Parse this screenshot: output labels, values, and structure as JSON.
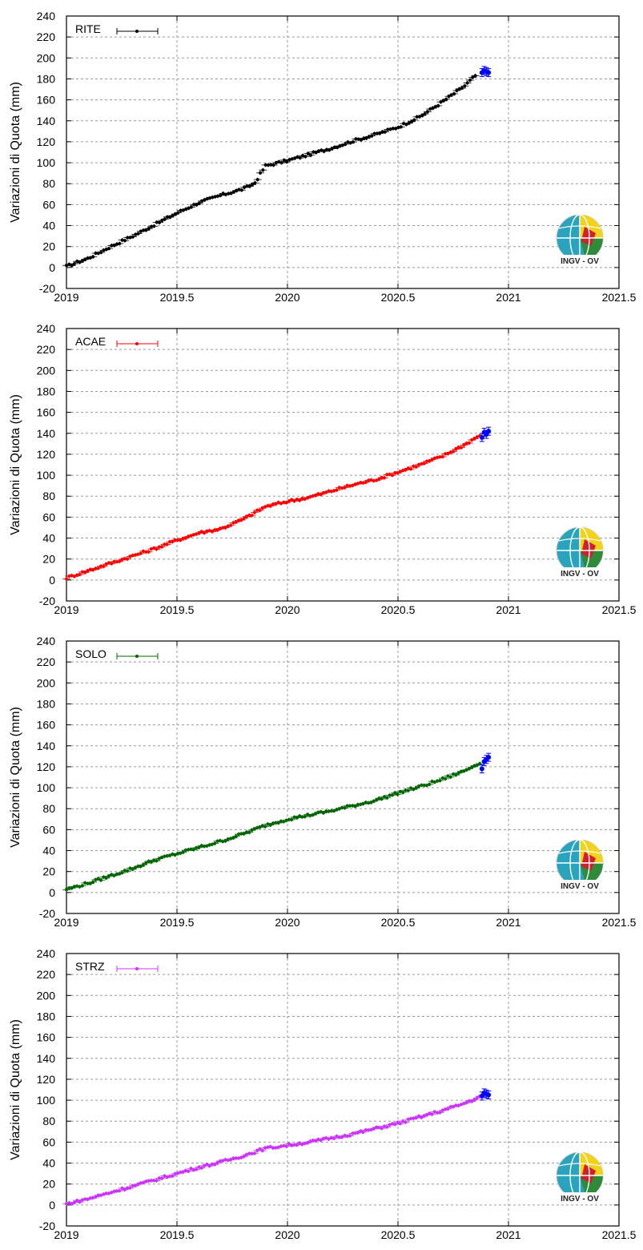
{
  "logo_text": "INGV - OV",
  "chart_data": [
    {
      "type": "scatter",
      "title": "",
      "xlabel": "",
      "ylabel": "Variazioni di Quota (mm)",
      "xlim": [
        2019,
        2021.5
      ],
      "ylim": [
        -20,
        240
      ],
      "x_ticks": [
        "2019",
        "2019.5",
        "2020",
        "2020.5",
        "2021",
        "2021.5"
      ],
      "y_ticks": [
        "-20",
        "0",
        "20",
        "40",
        "60",
        "80",
        "100",
        "120",
        "140",
        "160",
        "180",
        "200",
        "220",
        "240"
      ],
      "grid": true,
      "legend_position": "top-left",
      "series": [
        {
          "name": "RITE",
          "color": "#000000",
          "x": [
            2019.0,
            2019.1,
            2019.2,
            2019.3,
            2019.4,
            2019.5,
            2019.6,
            2019.7,
            2019.8,
            2019.85,
            2019.9,
            2020.0,
            2020.1,
            2020.2,
            2020.3,
            2020.4,
            2020.5,
            2020.6,
            2020.7,
            2020.8,
            2020.85
          ],
          "y": [
            1,
            9,
            20,
            30,
            41,
            52,
            62,
            69,
            75,
            80,
            97,
            102,
            108,
            114,
            121,
            127,
            134,
            144,
            158,
            173,
            183
          ]
        },
        {
          "name": "",
          "color": "#0000ff",
          "x": [
            2020.88,
            2020.89,
            2020.9,
            2020.91
          ],
          "y": [
            186,
            188,
            187,
            186
          ]
        }
      ]
    },
    {
      "type": "scatter",
      "title": "",
      "xlabel": "",
      "ylabel": "Variazioni di Quota (mm)",
      "xlim": [
        2019,
        2021.5
      ],
      "ylim": [
        -20,
        240
      ],
      "x_ticks": [
        "2019",
        "2019.5",
        "2020",
        "2020.5",
        "2021",
        "2021.5"
      ],
      "y_ticks": [
        "-20",
        "0",
        "20",
        "40",
        "60",
        "80",
        "100",
        "120",
        "140",
        "160",
        "180",
        "200",
        "220",
        "240"
      ],
      "grid": true,
      "legend_position": "top-left",
      "series": [
        {
          "name": "ACAE",
          "color": "#ff0000",
          "x": [
            2019.0,
            2019.1,
            2019.2,
            2019.3,
            2019.4,
            2019.5,
            2019.6,
            2019.7,
            2019.8,
            2019.9,
            2020.0,
            2020.1,
            2020.2,
            2020.3,
            2020.4,
            2020.5,
            2020.6,
            2020.7,
            2020.8,
            2020.87
          ],
          "y": [
            2,
            9,
            16,
            23,
            30,
            38,
            45,
            49,
            58,
            70,
            75,
            79,
            85,
            91,
            96,
            103,
            110,
            118,
            129,
            138
          ]
        },
        {
          "name": "",
          "color": "#0000ff",
          "x": [
            2020.88,
            2020.89,
            2020.9,
            2020.91
          ],
          "y": [
            136,
            141,
            139,
            142
          ]
        }
      ]
    },
    {
      "type": "scatter",
      "title": "",
      "xlabel": "",
      "ylabel": "Variazioni di Quota (mm)",
      "xlim": [
        2019,
        2021.5
      ],
      "ylim": [
        -20,
        240
      ],
      "x_ticks": [
        "2019",
        "2019.5",
        "2020",
        "2020.5",
        "2021",
        "2021.5"
      ],
      "y_ticks": [
        "-20",
        "0",
        "20",
        "40",
        "60",
        "80",
        "100",
        "120",
        "140",
        "160",
        "180",
        "200",
        "220",
        "240"
      ],
      "grid": true,
      "legend_position": "top-left",
      "series": [
        {
          "name": "SOLO",
          "color": "#006400",
          "x": [
            2019.0,
            2019.1,
            2019.2,
            2019.3,
            2019.4,
            2019.5,
            2019.6,
            2019.7,
            2019.8,
            2019.9,
            2020.0,
            2020.1,
            2020.2,
            2020.3,
            2020.4,
            2020.5,
            2020.6,
            2020.7,
            2020.8,
            2020.87
          ],
          "y": [
            3,
            9,
            16,
            23,
            31,
            37,
            43,
            49,
            56,
            64,
            70,
            74,
            78,
            83,
            88,
            95,
            101,
            108,
            116,
            124
          ]
        },
        {
          "name": "",
          "color": "#0000ff",
          "x": [
            2020.88,
            2020.89,
            2020.9,
            2020.91
          ],
          "y": [
            118,
            125,
            127,
            129
          ]
        }
      ]
    },
    {
      "type": "scatter",
      "title": "",
      "xlabel": "",
      "ylabel": "Variazioni di Quota (mm)",
      "xlim": [
        2019,
        2021.5
      ],
      "ylim": [
        -20,
        240
      ],
      "x_ticks": [
        "2019",
        "2019.5",
        "2020",
        "2020.5",
        "2021",
        "2021.5"
      ],
      "y_ticks": [
        "-20",
        "0",
        "20",
        "40",
        "60",
        "80",
        "100",
        "120",
        "140",
        "160",
        "180",
        "200",
        "220",
        "240"
      ],
      "grid": true,
      "legend_position": "top-left",
      "series": [
        {
          "name": "STRZ",
          "color": "#cc33ff",
          "x": [
            2019.0,
            2019.1,
            2019.2,
            2019.3,
            2019.4,
            2019.5,
            2019.6,
            2019.7,
            2019.8,
            2019.9,
            2020.0,
            2020.1,
            2020.2,
            2020.3,
            2020.4,
            2020.5,
            2020.6,
            2020.7,
            2020.8,
            2020.87
          ],
          "y": [
            1,
            6,
            12,
            18,
            24,
            30,
            36,
            41,
            47,
            54,
            57,
            60,
            64,
            68,
            73,
            78,
            84,
            90,
            97,
            103
          ]
        },
        {
          "name": "",
          "color": "#0000ff",
          "x": [
            2020.88,
            2020.89,
            2020.9,
            2020.91
          ],
          "y": [
            104,
            107,
            106,
            105
          ]
        }
      ]
    }
  ]
}
